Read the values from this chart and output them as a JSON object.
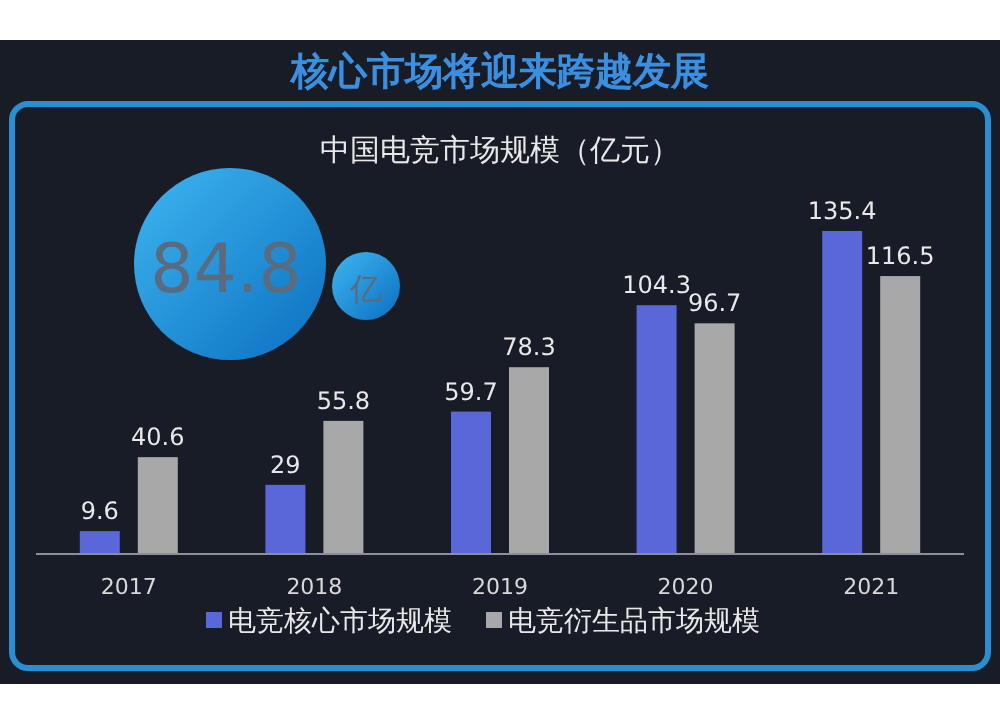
{
  "chart_data": {
    "type": "bar",
    "title": "核心市场将迎来跨越发展",
    "subtitle": "中国电竞市场规模（亿元）",
    "categories": [
      "2017",
      "2018",
      "2019",
      "2020",
      "2021"
    ],
    "series": [
      {
        "name": "电竞核心市场规模",
        "color": "#5a67d8",
        "values": [
          9.6,
          29,
          59.7,
          104.3,
          135.4
        ]
      },
      {
        "name": "电竞衍生品市场规模",
        "color": "#a8a8a8",
        "values": [
          40.6,
          55.8,
          78.3,
          96.7,
          116.5
        ]
      }
    ],
    "data_labels": true,
    "legend": "bottom",
    "annotations": [
      "84.8",
      "亿"
    ]
  }
}
